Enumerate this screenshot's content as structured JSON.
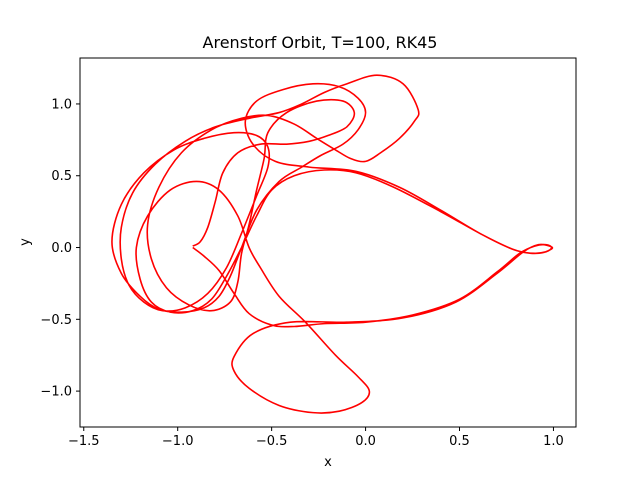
{
  "chart_data": {
    "type": "line",
    "title": "Arenstorf Orbit, T=100, RK45",
    "xlabel": "x",
    "ylabel": "y",
    "xlim": [
      -1.52,
      1.12
    ],
    "ylim": [
      -1.25,
      1.32
    ],
    "xticks": [
      -1.5,
      -1.0,
      -0.5,
      0.0,
      0.5,
      1.0
    ],
    "xtick_labels": [
      "−1.5",
      "−1.0",
      "−0.5",
      "0.0",
      "0.5",
      "1.0"
    ],
    "yticks": [
      -1.0,
      -0.5,
      0.0,
      0.5,
      1.0
    ],
    "ytick_labels": [
      "−1.0",
      "−0.5",
      "0.0",
      "0.5",
      "1.0"
    ],
    "grid": false,
    "legend": "none",
    "series": [
      {
        "color": "#ff0000",
        "segments": [
          [
            [
              -0.92,
              0.0
            ],
            [
              -0.86,
              -0.06
            ],
            [
              -0.78,
              -0.16
            ],
            [
              -0.7,
              -0.32
            ],
            [
              -0.62,
              -0.46
            ],
            [
              -0.5,
              -0.54
            ],
            [
              -0.38,
              -0.55
            ],
            [
              -0.22,
              -0.53
            ],
            [
              0.0,
              -0.52
            ],
            [
              0.25,
              -0.47
            ],
            [
              0.5,
              -0.36
            ],
            [
              0.7,
              -0.17
            ],
            [
              0.82,
              -0.04
            ],
            [
              0.9,
              0.01
            ],
            [
              0.96,
              0.02
            ],
            [
              0.99,
              0.0
            ],
            [
              0.96,
              -0.03
            ],
            [
              0.88,
              -0.04
            ],
            [
              0.78,
              -0.01
            ],
            [
              0.62,
              0.09
            ],
            [
              0.4,
              0.25
            ],
            [
              0.15,
              0.42
            ],
            [
              -0.05,
              0.52
            ],
            [
              -0.22,
              0.54
            ],
            [
              -0.38,
              0.5
            ],
            [
              -0.5,
              0.4
            ],
            [
              -0.58,
              0.22
            ],
            [
              -0.66,
              0.0
            ],
            [
              -0.74,
              -0.2
            ],
            [
              -0.82,
              -0.36
            ],
            [
              -0.92,
              -0.44
            ],
            [
              -1.04,
              -0.45
            ],
            [
              -1.14,
              -0.38
            ],
            [
              -1.2,
              -0.22
            ],
            [
              -1.22,
              0.0
            ],
            [
              -1.16,
              0.22
            ],
            [
              -1.04,
              0.4
            ],
            [
              -0.9,
              0.46
            ],
            [
              -0.78,
              0.4
            ],
            [
              -0.68,
              0.22
            ],
            [
              -0.62,
              0.0
            ],
            [
              -0.56,
              -0.14
            ],
            [
              -0.46,
              -0.34
            ],
            [
              -0.32,
              -0.52
            ],
            [
              -0.16,
              -0.75
            ],
            [
              -0.04,
              -0.9
            ],
            [
              0.02,
              -1.0
            ],
            [
              -0.02,
              -1.08
            ],
            [
              -0.14,
              -1.14
            ],
            [
              -0.28,
              -1.15
            ],
            [
              -0.46,
              -1.1
            ],
            [
              -0.62,
              -0.98
            ],
            [
              -0.7,
              -0.86
            ],
            [
              -0.7,
              -0.76
            ],
            [
              -0.6,
              -0.6
            ],
            [
              -0.4,
              -0.52
            ],
            [
              -0.1,
              -0.52
            ],
            [
              0.2,
              -0.49
            ],
            [
              0.48,
              -0.38
            ],
            [
              0.7,
              -0.18
            ],
            [
              0.84,
              -0.03
            ],
            [
              0.92,
              0.02
            ],
            [
              0.98,
              0.01
            ],
            [
              0.99,
              -0.01
            ],
            [
              0.92,
              -0.04
            ],
            [
              0.8,
              -0.02
            ],
            [
              0.62,
              0.09
            ],
            [
              0.4,
              0.26
            ],
            [
              0.18,
              0.42
            ],
            [
              -0.05,
              0.53
            ],
            [
              -0.3,
              0.56
            ],
            [
              -0.48,
              0.6
            ],
            [
              -0.6,
              0.72
            ],
            [
              -0.64,
              0.88
            ],
            [
              -0.58,
              1.02
            ],
            [
              -0.44,
              1.1
            ],
            [
              -0.28,
              1.14
            ],
            [
              -0.14,
              1.12
            ],
            [
              -0.04,
              1.04
            ],
            [
              0.0,
              0.94
            ],
            [
              -0.04,
              0.82
            ],
            [
              -0.12,
              0.72
            ],
            [
              -0.24,
              0.64
            ],
            [
              -0.34,
              0.56
            ],
            [
              -0.46,
              0.46
            ],
            [
              -0.58,
              0.26
            ],
            [
              -0.66,
              0.0
            ],
            [
              -0.72,
              -0.2
            ],
            [
              -0.78,
              -0.34
            ],
            [
              -0.86,
              -0.42
            ],
            [
              -0.98,
              -0.45
            ],
            [
              -1.1,
              -0.43
            ],
            [
              -1.2,
              -0.34
            ],
            [
              -1.3,
              -0.18
            ],
            [
              -1.35,
              0.04
            ],
            [
              -1.3,
              0.3
            ],
            [
              -1.18,
              0.52
            ],
            [
              -1.02,
              0.68
            ],
            [
              -0.86,
              0.76
            ],
            [
              -0.7,
              0.8
            ],
            [
              -0.58,
              0.78
            ],
            [
              -0.52,
              0.7
            ],
            [
              -0.52,
              0.56
            ],
            [
              -0.58,
              0.36
            ],
            [
              -0.66,
              0.1
            ],
            [
              -0.74,
              -0.14
            ],
            [
              -0.84,
              -0.32
            ],
            [
              -0.96,
              -0.42
            ],
            [
              -1.08,
              -0.44
            ],
            [
              -1.18,
              -0.38
            ],
            [
              -1.26,
              -0.26
            ],
            [
              -1.3,
              -0.08
            ],
            [
              -1.3,
              0.14
            ],
            [
              -1.24,
              0.38
            ],
            [
              -1.12,
              0.58
            ],
            [
              -0.96,
              0.74
            ],
            [
              -0.8,
              0.84
            ],
            [
              -0.62,
              0.9
            ],
            [
              -0.46,
              0.94
            ],
            [
              -0.34,
              1.0
            ],
            [
              -0.22,
              1.08
            ],
            [
              -0.1,
              1.14
            ],
            [
              0.06,
              1.2
            ],
            [
              0.2,
              1.14
            ],
            [
              0.28,
              0.96
            ],
            [
              0.26,
              0.88
            ],
            [
              0.18,
              0.76
            ],
            [
              0.08,
              0.66
            ],
            [
              0.0,
              0.6
            ],
            [
              -0.08,
              0.62
            ],
            [
              -0.16,
              0.68
            ],
            [
              -0.26,
              0.76
            ],
            [
              -0.38,
              0.86
            ],
            [
              -0.52,
              0.92
            ],
            [
              -0.66,
              0.9
            ],
            [
              -0.82,
              0.82
            ],
            [
              -0.98,
              0.66
            ],
            [
              -1.1,
              0.42
            ],
            [
              -1.16,
              0.16
            ],
            [
              -1.14,
              -0.08
            ],
            [
              -1.06,
              -0.28
            ],
            [
              -0.94,
              -0.4
            ],
            [
              -0.82,
              -0.44
            ],
            [
              -0.72,
              -0.38
            ],
            [
              -0.68,
              -0.24
            ],
            [
              -0.66,
              -0.04
            ],
            [
              -0.62,
              0.16
            ],
            [
              -0.58,
              0.4
            ],
            [
              -0.54,
              0.62
            ],
            [
              -0.52,
              0.8
            ],
            [
              -0.42,
              0.94
            ],
            [
              -0.26,
              1.02
            ],
            [
              -0.12,
              1.02
            ],
            [
              -0.06,
              0.94
            ],
            [
              -0.1,
              0.84
            ],
            [
              -0.2,
              0.78
            ],
            [
              -0.3,
              0.74
            ],
            [
              -0.42,
              0.72
            ],
            [
              -0.56,
              0.72
            ],
            [
              -0.68,
              0.66
            ],
            [
              -0.76,
              0.52
            ],
            [
              -0.8,
              0.32
            ],
            [
              -0.84,
              0.14
            ],
            [
              -0.88,
              0.04
            ],
            [
              -0.92,
              0.01
            ]
          ]
        ]
      }
    ]
  }
}
